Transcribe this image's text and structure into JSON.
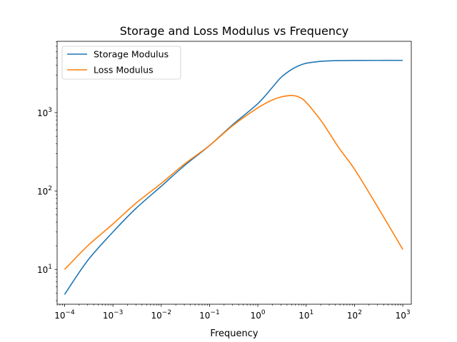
{
  "chart_data": {
    "type": "line",
    "title": "Storage and Loss Modulus vs Frequency",
    "xlabel": "Frequency",
    "ylabel": "",
    "x_scale": "log",
    "y_scale": "log",
    "xlim": [
      7e-05,
      1500
    ],
    "ylim": [
      3.6,
      8100
    ],
    "grid": false,
    "legend_position": "top-left",
    "x_ticks": [
      {
        "base": "10",
        "exp": "−4",
        "value": 0.0001
      },
      {
        "base": "10",
        "exp": "−3",
        "value": 0.001
      },
      {
        "base": "10",
        "exp": "−2",
        "value": 0.01
      },
      {
        "base": "10",
        "exp": "−1",
        "value": 0.1
      },
      {
        "base": "10",
        "exp": "0",
        "value": 1
      },
      {
        "base": "10",
        "exp": "1",
        "value": 10
      },
      {
        "base": "10",
        "exp": "2",
        "value": 100
      },
      {
        "base": "10",
        "exp": "3",
        "value": 1000
      }
    ],
    "y_ticks": [
      {
        "base": "10",
        "exp": "1",
        "value": 10
      },
      {
        "base": "10",
        "exp": "2",
        "value": 100
      },
      {
        "base": "10",
        "exp": "3",
        "value": 1000
      }
    ],
    "x": [
      0.0001,
      0.0003,
      0.001,
      0.003,
      0.01,
      0.03,
      0.1,
      0.3,
      1,
      2,
      3,
      5,
      7,
      10,
      20,
      30,
      50,
      100,
      300,
      1000
    ],
    "series": [
      {
        "name": "Storage Modulus",
        "color": "#1f77b4",
        "values": [
          4.8,
          13,
          30,
          60,
          115,
          210,
          380,
          700,
          1300,
          2100,
          2800,
          3550,
          3950,
          4250,
          4500,
          4560,
          4600,
          4620,
          4630,
          4630
        ]
      },
      {
        "name": "Loss Modulus",
        "color": "#ff7f0e",
        "values": [
          10,
          20,
          38,
          70,
          125,
          220,
          380,
          680,
          1150,
          1450,
          1580,
          1650,
          1580,
          1350,
          800,
          550,
          340,
          190,
          63,
          18
        ]
      }
    ]
  }
}
